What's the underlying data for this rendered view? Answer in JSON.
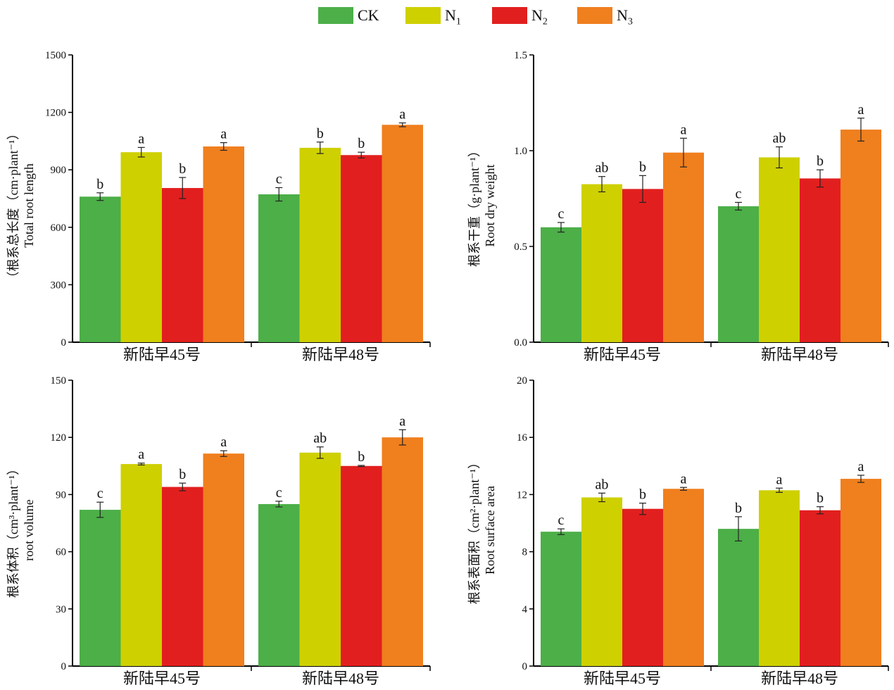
{
  "legend": [
    "CK",
    "N1",
    "N2",
    "N3"
  ],
  "colors": {
    "CK": "#4caf48",
    "N1": "#cfd000",
    "N2": "#e21f1f",
    "N3": "#f07f1e"
  },
  "chart_data": [
    {
      "type": "bar",
      "title": "",
      "ylabel_cn": "（根系总长度（cm·plant⁻¹）",
      "ylabel_en": "Total root length",
      "categories": [
        "新陆早45号",
        "新陆早48号"
      ],
      "ylim": [
        0,
        1500
      ],
      "yticks": [
        0,
        300,
        600,
        900,
        1200,
        1500
      ],
      "yticklabels": [
        "0",
        "300",
        "600",
        "900",
        "1200",
        "1500"
      ],
      "series": [
        {
          "name": "CK",
          "values": [
            760,
            772
          ],
          "errors": [
            20,
            35
          ],
          "letters": [
            "b",
            "c"
          ]
        },
        {
          "name": "N1",
          "values": [
            992,
            1015
          ],
          "errors": [
            25,
            30
          ],
          "letters": [
            "a",
            "b"
          ]
        },
        {
          "name": "N2",
          "values": [
            805,
            977
          ],
          "errors": [
            55,
            15
          ],
          "letters": [
            "b",
            "b"
          ]
        },
        {
          "name": "N3",
          "values": [
            1022,
            1135
          ],
          "errors": [
            20,
            10
          ],
          "letters": [
            "a",
            "a"
          ]
        }
      ]
    },
    {
      "type": "bar",
      "title": "",
      "ylabel_cn": "根系干重（g·plant⁻¹）",
      "ylabel_en": "Root dry weight",
      "categories": [
        "新陆早45号",
        "新陆早48号"
      ],
      "ylim": [
        0,
        1.5
      ],
      "yticks": [
        0,
        0.5,
        1.0,
        1.5
      ],
      "yticklabels": [
        "0.0",
        "0.5",
        "1.0",
        "1.5"
      ],
      "series": [
        {
          "name": "CK",
          "values": [
            0.6,
            0.71
          ],
          "errors": [
            0.025,
            0.02
          ],
          "letters": [
            "c",
            "c"
          ]
        },
        {
          "name": "N1",
          "values": [
            0.825,
            0.965
          ],
          "errors": [
            0.04,
            0.055
          ],
          "letters": [
            "ab",
            "ab"
          ]
        },
        {
          "name": "N2",
          "values": [
            0.8,
            0.855
          ],
          "errors": [
            0.07,
            0.045
          ],
          "letters": [
            "b",
            "b"
          ]
        },
        {
          "name": "N3",
          "values": [
            0.99,
            1.11
          ],
          "errors": [
            0.075,
            0.06
          ],
          "letters": [
            "a",
            "a"
          ]
        }
      ]
    },
    {
      "type": "bar",
      "title": "",
      "ylabel_cn": "根系体积（cm³·plant⁻¹）",
      "ylabel_en": "root volume",
      "categories": [
        "新陆早45号",
        "新陆早48号"
      ],
      "ylim": [
        0,
        150
      ],
      "yticks": [
        0,
        30,
        60,
        90,
        120,
        150
      ],
      "yticklabels": [
        "0",
        "30",
        "60",
        "90",
        "120",
        "150"
      ],
      "series": [
        {
          "name": "CK",
          "values": [
            82,
            85
          ],
          "errors": [
            4,
            1.5
          ],
          "letters": [
            "c",
            "c"
          ]
        },
        {
          "name": "N1",
          "values": [
            106,
            112
          ],
          "errors": [
            0.5,
            3
          ],
          "letters": [
            "a",
            "ab"
          ]
        },
        {
          "name": "N2",
          "values": [
            94,
            105
          ],
          "errors": [
            2,
            0.3
          ],
          "letters": [
            "b",
            "b"
          ]
        },
        {
          "name": "N3",
          "values": [
            111.5,
            120
          ],
          "errors": [
            1.5,
            4
          ],
          "letters": [
            "a",
            "a"
          ]
        }
      ]
    },
    {
      "type": "bar",
      "title": "",
      "ylabel_cn": "根系表面积（cm²·plant⁻¹）",
      "ylabel_en": "Root surface area",
      "categories": [
        "新陆早45号",
        "新陆早48号"
      ],
      "ylim": [
        0,
        20
      ],
      "yticks": [
        0,
        4,
        8,
        12,
        16,
        20
      ],
      "yticklabels": [
        "0",
        "4",
        "8",
        "12",
        "16",
        "20"
      ],
      "series": [
        {
          "name": "CK",
          "values": [
            9.4,
            9.6
          ],
          "errors": [
            0.2,
            0.85
          ],
          "letters": [
            "c",
            "b"
          ]
        },
        {
          "name": "N1",
          "values": [
            11.8,
            12.3
          ],
          "errors": [
            0.3,
            0.15
          ],
          "letters": [
            "ab",
            "a"
          ]
        },
        {
          "name": "N2",
          "values": [
            11.0,
            10.9
          ],
          "errors": [
            0.4,
            0.25
          ],
          "letters": [
            "b",
            "b"
          ]
        },
        {
          "name": "N3",
          "values": [
            12.4,
            13.1
          ],
          "errors": [
            0.1,
            0.25
          ],
          "letters": [
            "a",
            "a"
          ]
        }
      ]
    }
  ]
}
